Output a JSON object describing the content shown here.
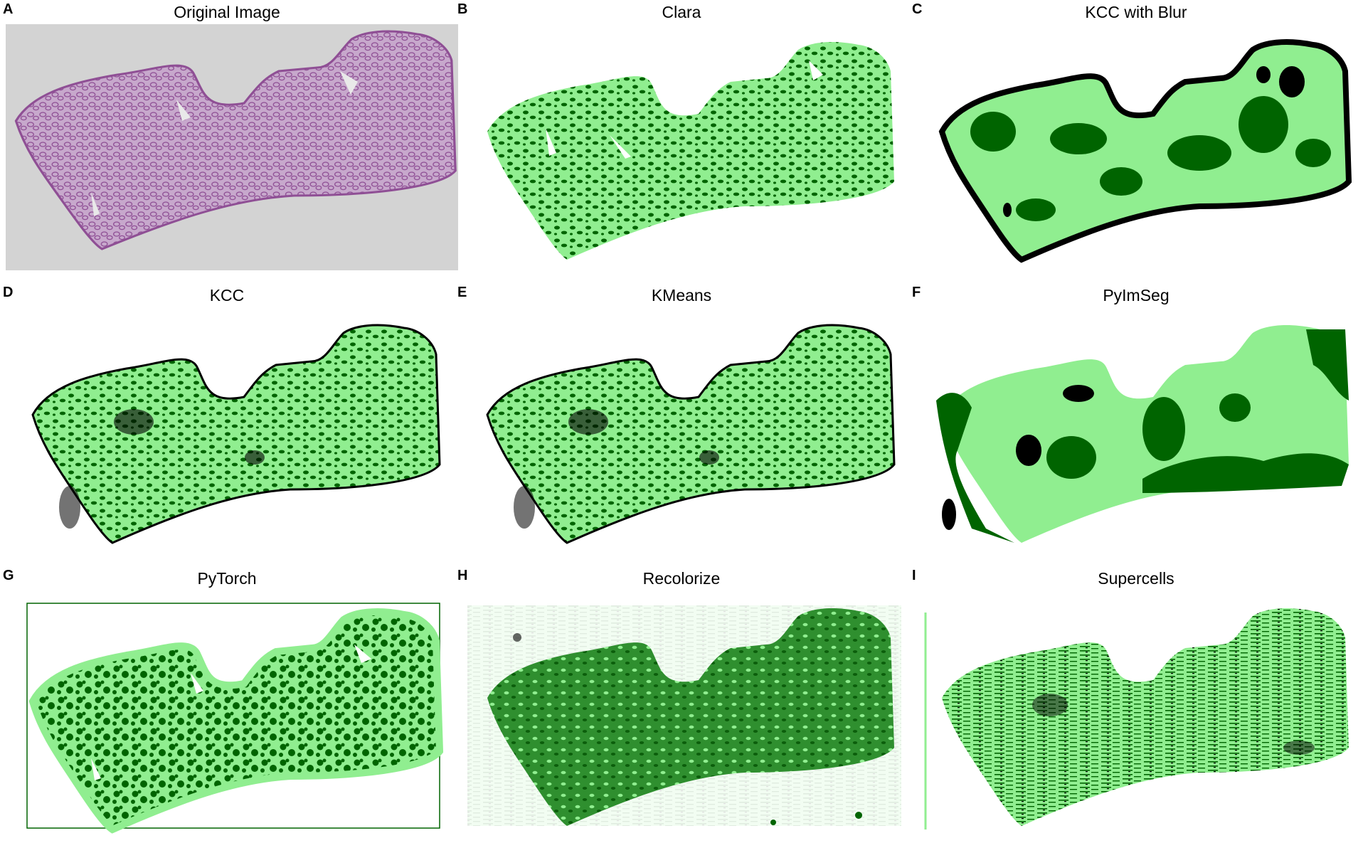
{
  "figure": {
    "colors": {
      "light_green": "#90ee90",
      "dark_green": "#006400",
      "black": "#000000",
      "purple": "#8f4f95",
      "bg_gray": "#d3d3d3"
    },
    "panels": [
      {
        "letter": "A",
        "title": "Original Image"
      },
      {
        "letter": "B",
        "title": "Clara"
      },
      {
        "letter": "C",
        "title": "KCC with Blur"
      },
      {
        "letter": "D",
        "title": "KCC"
      },
      {
        "letter": "E",
        "title": "KMeans"
      },
      {
        "letter": "F",
        "title": "PyImSeg"
      },
      {
        "letter": "G",
        "title": "PyTorch"
      },
      {
        "letter": "H",
        "title": "Recolorize"
      },
      {
        "letter": "I",
        "title": "Supercells"
      }
    ]
  }
}
